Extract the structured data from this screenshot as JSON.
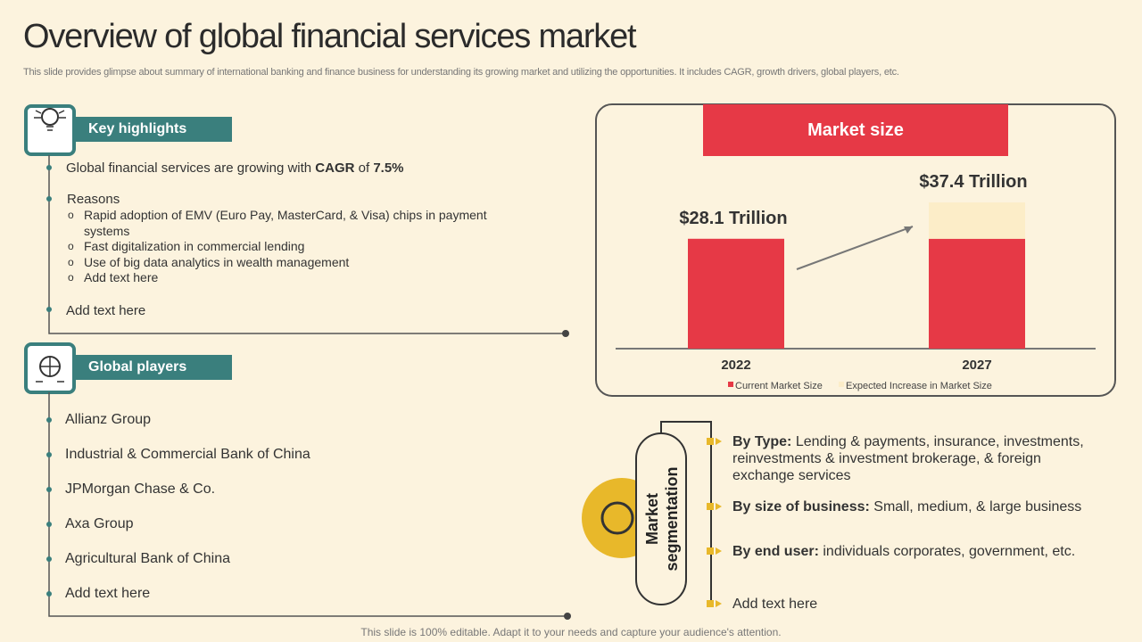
{
  "title": "Overview of global financial services market",
  "subtitle": "This slide provides glimpse about summary of international banking and finance business for understanding its growing market and utilizing the opportunities. It includes CAGR, growth drivers, global players, etc.",
  "highlights": {
    "heading": "Key highlights",
    "cagr": [
      "Global financial services are growing with ",
      "CAGR",
      " of ",
      "7.5%"
    ],
    "reasons": {
      "label": "Reasons",
      "subitems": [
        "Rapid adoption of EMV (Euro Pay, MasterCard, & Visa) chips in payment systems",
        "Fast digitalization in commercial lending",
        "Use of big data analytics in wealth management",
        "Add text here"
      ]
    },
    "last": "Add text here"
  },
  "players": {
    "heading": "Global players",
    "items": [
      "Allianz Group",
      "Industrial  & Commercial Bank of China",
      "JPMorgan Chase & Co.",
      "Axa Group",
      "Agricultural Bank of China",
      "Add text here"
    ]
  },
  "chart_data": {
    "type": "bar",
    "title": "Market size",
    "categories": [
      "2022",
      "2027"
    ],
    "series": [
      {
        "name": "Current Market Size",
        "color": "#e63946",
        "values": [
          28.1,
          28.1
        ]
      },
      {
        "name": "Expected Increase in Market Size",
        "color": "#fcedc8",
        "values": [
          0,
          9.3
        ]
      }
    ],
    "totals": [
      28.1,
      37.4
    ],
    "total_labels": [
      "$28.1 Trillion",
      "$37.4 Trillion"
    ]
  },
  "segmentation": {
    "heading": "Market segmentation",
    "items": [
      {
        "label": "By Type:",
        "text": "Lending & payments, insurance, investments, reinvestments & investment brokerage, & foreign exchange services"
      },
      {
        "label": "By size of business:",
        "text": "Small, medium, & large business"
      },
      {
        "label": "By end user:",
        "text": "individuals corporates, government, etc."
      },
      {
        "text": "Add text here"
      }
    ]
  },
  "footer": "This slide is 100% editable. Adapt it to your needs and capture your audience's attention."
}
